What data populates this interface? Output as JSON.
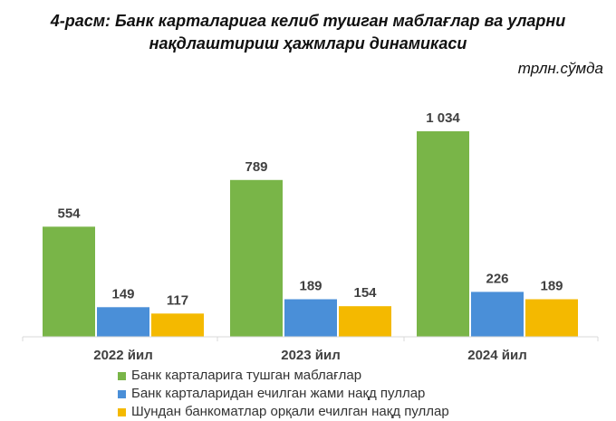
{
  "chart_data": {
    "type": "bar",
    "title": "4-расм: Банк карталарига келиб тушган маблағлар ва уларни",
    "title_line2": "нақдлаштириш ҳажмлари динамикаси",
    "unit": "трлн.сўмда",
    "categories": [
      "2022 йил",
      "2023 йил",
      "2024 йил"
    ],
    "series": [
      {
        "name": "Банк карталарига тушган маблағлар",
        "values": [
          554,
          789,
          1034
        ],
        "labels": [
          "554",
          "789",
          "1 034"
        ],
        "color": "#79b548"
      },
      {
        "name": "Банк карталаридан ечилган жами нақд пуллар",
        "values": [
          149,
          189,
          226
        ],
        "labels": [
          "149",
          "189",
          "226"
        ],
        "color": "#4a8fd8"
      },
      {
        "name": "Шундан банкоматлар орқали ечилган нақд пуллар",
        "values": [
          117,
          154,
          189
        ],
        "labels": [
          "117",
          "154",
          "189"
        ],
        "color": "#f4b900"
      }
    ],
    "ylim": [
      0,
      1034
    ],
    "grid": false,
    "legend": "bottom"
  }
}
